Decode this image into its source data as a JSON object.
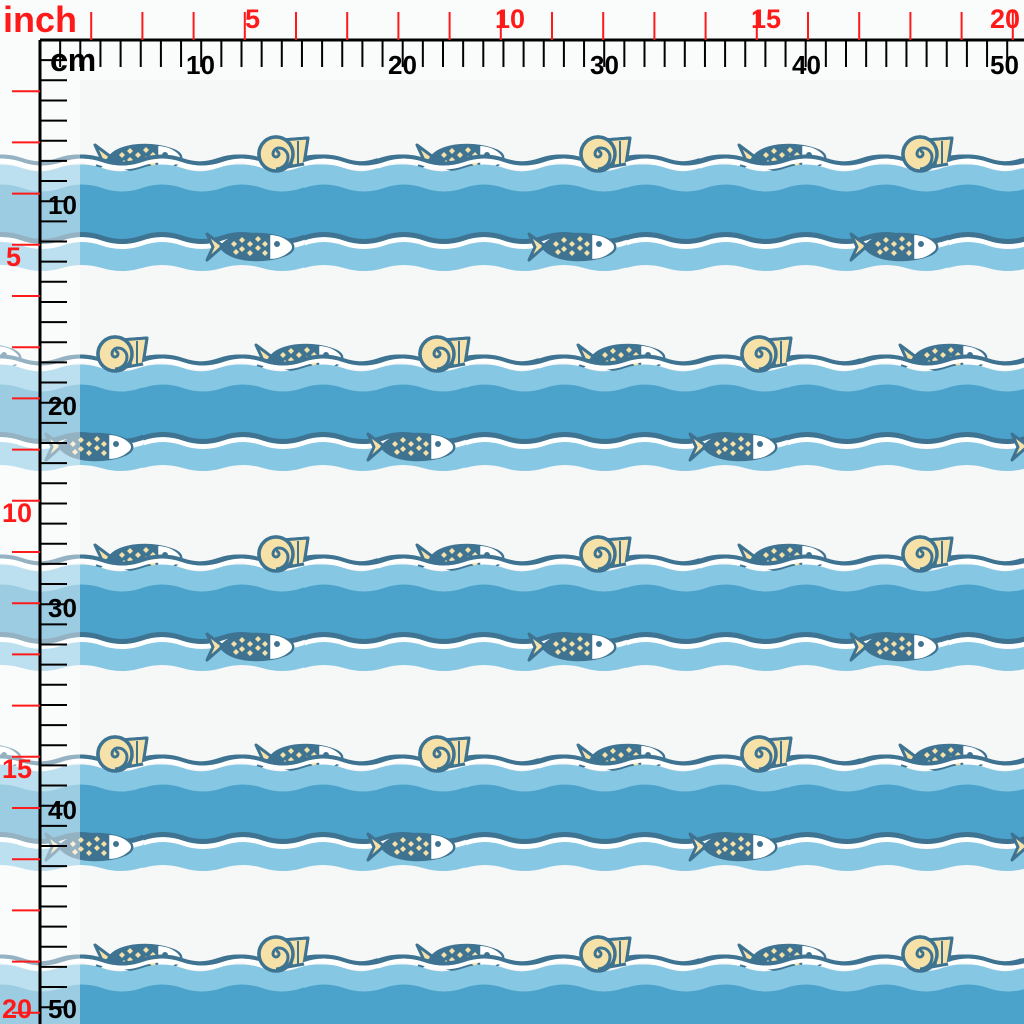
{
  "ruler": {
    "inch_unit": "inch",
    "cm_unit": "cm",
    "top_inch_labels": [
      "5",
      "10",
      "15",
      "20"
    ],
    "top_cm_labels": [
      "10",
      "20",
      "30",
      "40",
      "50"
    ],
    "left_inch_labels": [
      "5",
      "10",
      "15",
      "20"
    ],
    "left_cm_labels": [
      "10",
      "20",
      "30",
      "40",
      "50"
    ]
  },
  "pattern": {
    "motifs": [
      "fish",
      "spiral-shell",
      "cone-shell",
      "waves"
    ],
    "colors": {
      "background": "#f6f7f7",
      "light_water": "#86c7e3",
      "deep_water": "#4ba3cb",
      "outline": "#3e7391",
      "sand": "#f6e2a9",
      "ruler_inch": "#ff1a1a",
      "ruler_cm": "#000000"
    }
  }
}
